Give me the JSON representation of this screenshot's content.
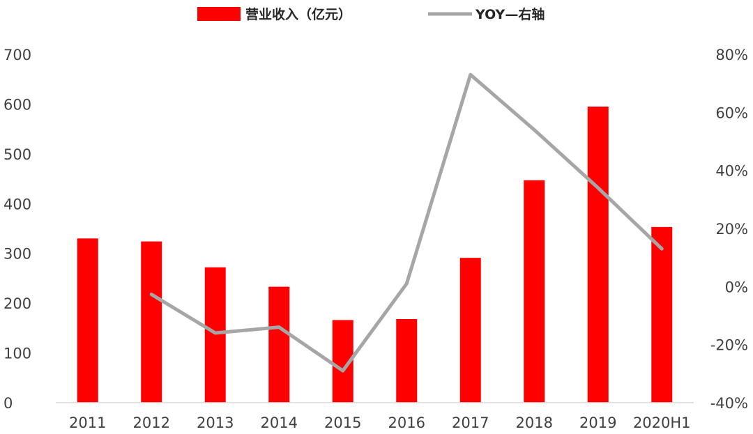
{
  "chart_data": {
    "type": "bar+line",
    "categories": [
      "2011",
      "2012",
      "2013",
      "2014",
      "2015",
      "2016",
      "2017",
      "2018",
      "2019",
      "2020H1"
    ],
    "series": [
      {
        "name": "营业收入（亿元）",
        "type": "bar",
        "axis": "left",
        "color": "#ff0000",
        "values": [
          330,
          324,
          272,
          233,
          166,
          168,
          291,
          447,
          595,
          353
        ]
      },
      {
        "name": "YOY—右轴",
        "type": "line",
        "axis": "right",
        "color": "#a6a6a6",
        "values": [
          null,
          -2.7,
          -16,
          -14,
          -29,
          1,
          73,
          54,
          34,
          13
        ]
      }
    ],
    "y_left": {
      "lim": [
        0,
        700
      ],
      "ticks": [
        0,
        100,
        200,
        300,
        400,
        500,
        600,
        700
      ],
      "tick_labels": [
        "0",
        "100",
        "200",
        "300",
        "400",
        "500",
        "600",
        "700"
      ]
    },
    "y_right": {
      "lim": [
        -40,
        80
      ],
      "ticks": [
        -40,
        -20,
        0,
        20,
        40,
        60,
        80
      ],
      "tick_labels": [
        "-40%",
        "-20%",
        "0%",
        "20%",
        "40%",
        "60%",
        "80%"
      ]
    },
    "legend_position": "top",
    "grid": false
  }
}
